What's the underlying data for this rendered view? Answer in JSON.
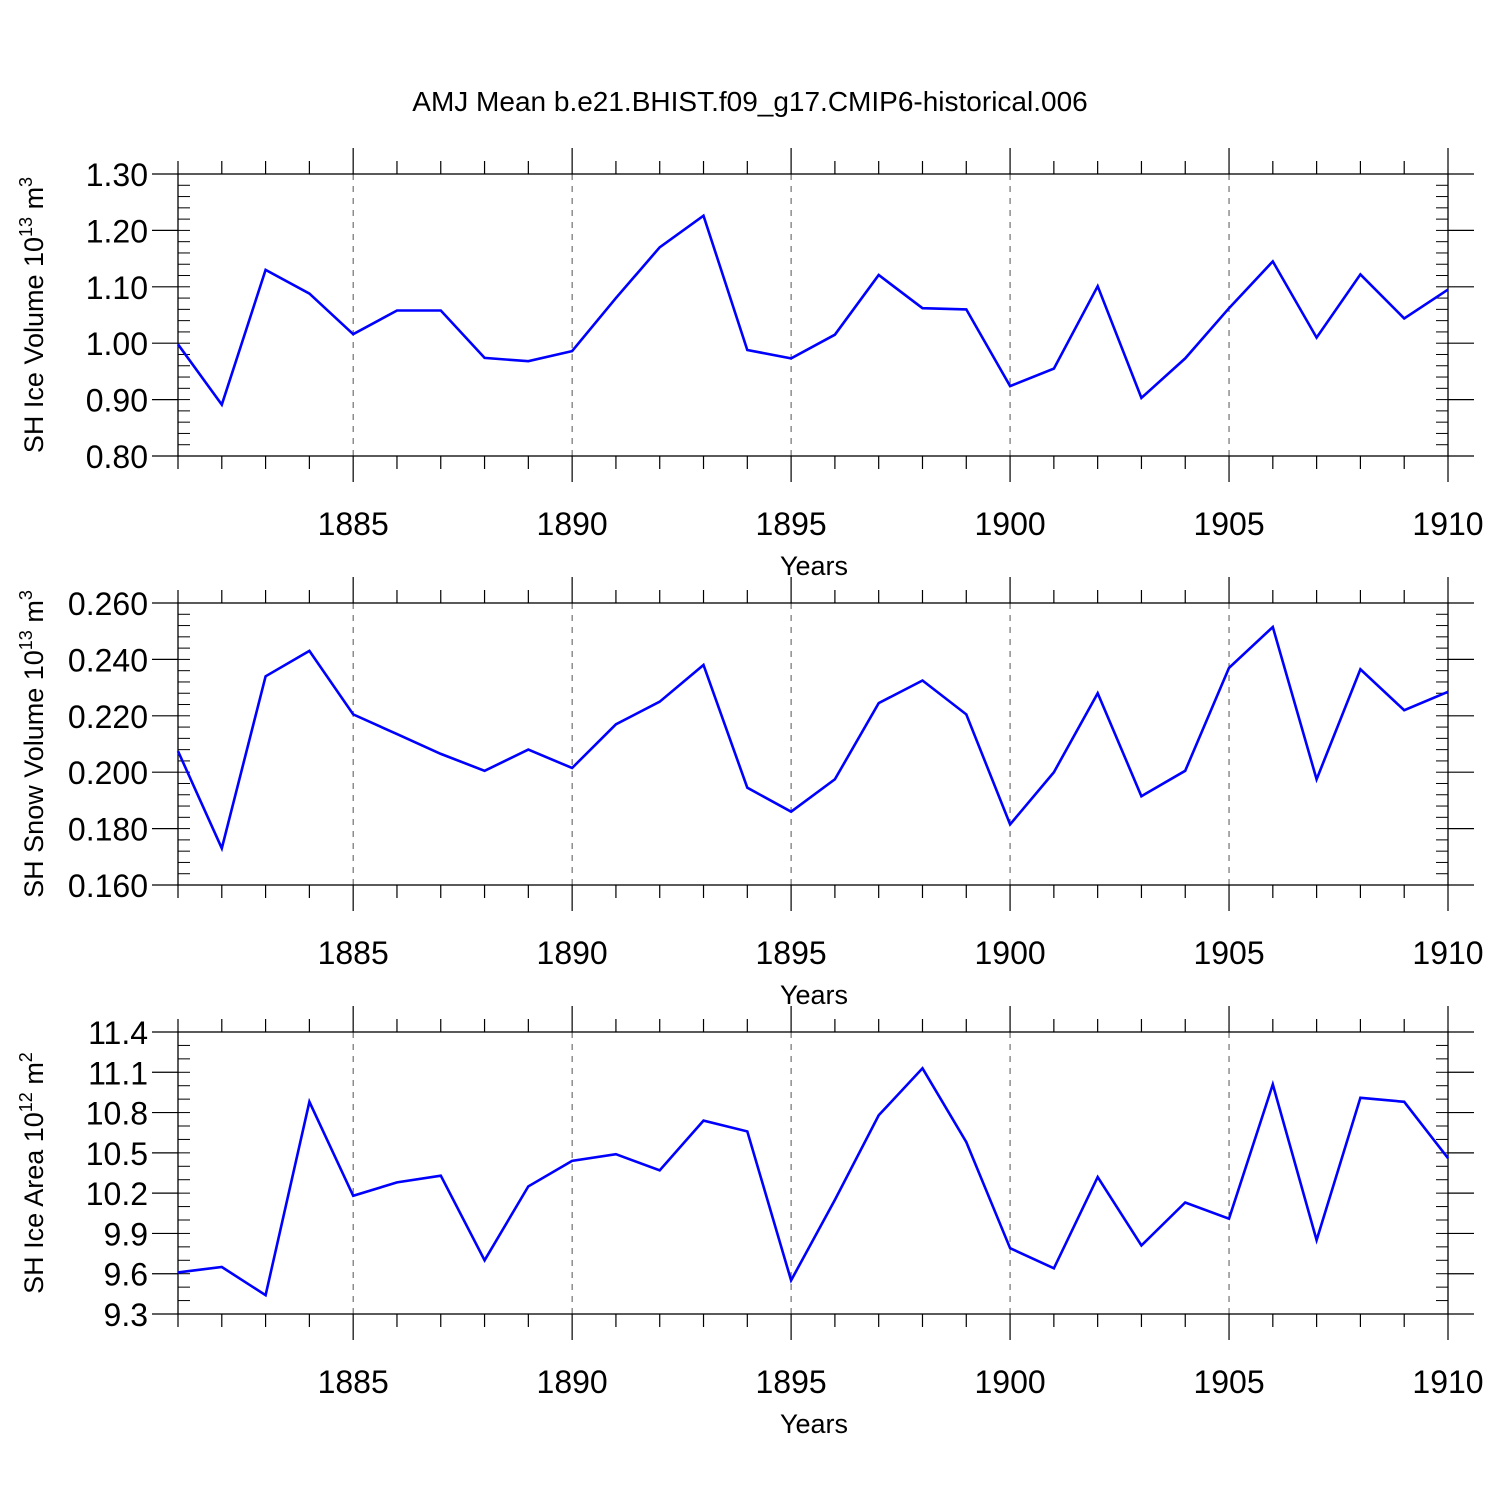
{
  "title": "AMJ Mean b.e21.BHIST.f09_g17.CMIP6-historical.006",
  "line_color": "#0000ff",
  "chart_data": [
    {
      "type": "line",
      "ylabel": "SH Ice Volume 10",
      "ylabel_sup": "13",
      "ylabel_unit": " m",
      "ylabel_unit_sup": "3",
      "xlabel": "Years",
      "xlim": [
        1881,
        1910
      ],
      "ylim": [
        0.8,
        1.3
      ],
      "x_ticks": [
        1885,
        1890,
        1895,
        1900,
        1905,
        1910
      ],
      "x_tick_labels": [
        "1885",
        "1890",
        "1895",
        "1900",
        "1905",
        "1910"
      ],
      "y_ticks": [
        0.8,
        0.9,
        1.0,
        1.1,
        1.2,
        1.3
      ],
      "y_tick_labels": [
        "0.80",
        "0.90",
        "1.00",
        "1.10",
        "1.20",
        "1.30"
      ],
      "y_minor_step": 0.02,
      "grid": "vertical dashed at major x ticks",
      "x": [
        1881,
        1882,
        1883,
        1884,
        1885,
        1886,
        1887,
        1888,
        1889,
        1890,
        1891,
        1892,
        1893,
        1894,
        1895,
        1896,
        1897,
        1898,
        1899,
        1900,
        1901,
        1902,
        1903,
        1904,
        1905,
        1906,
        1907,
        1908,
        1909,
        1910
      ],
      "y": [
        0.998,
        0.891,
        1.13,
        1.088,
        1.016,
        1.058,
        1.058,
        0.974,
        0.968,
        0.986,
        1.08,
        1.17,
        1.226,
        0.988,
        0.973,
        1.015,
        1.121,
        1.062,
        1.06,
        0.924,
        0.955,
        1.101,
        0.903,
        0.973,
        1.062,
        1.145,
        1.01,
        1.122,
        1.044,
        1.095
      ]
    },
    {
      "type": "line",
      "ylabel": "SH Snow Volume 10",
      "ylabel_sup": "13",
      "ylabel_unit": " m",
      "ylabel_unit_sup": "3",
      "xlabel": "Years",
      "xlim": [
        1881,
        1910
      ],
      "ylim": [
        0.16,
        0.26
      ],
      "x_ticks": [
        1885,
        1890,
        1895,
        1900,
        1905,
        1910
      ],
      "x_tick_labels": [
        "1885",
        "1890",
        "1895",
        "1900",
        "1905",
        "1910"
      ],
      "y_ticks": [
        0.16,
        0.18,
        0.2,
        0.22,
        0.24,
        0.26
      ],
      "y_tick_labels": [
        "0.160",
        "0.180",
        "0.200",
        "0.220",
        "0.240",
        "0.260"
      ],
      "y_minor_step": 0.004,
      "grid": "vertical dashed at major x ticks",
      "x": [
        1881,
        1882,
        1883,
        1884,
        1885,
        1886,
        1887,
        1888,
        1889,
        1890,
        1891,
        1892,
        1893,
        1894,
        1895,
        1896,
        1897,
        1898,
        1899,
        1900,
        1901,
        1902,
        1903,
        1904,
        1905,
        1906,
        1907,
        1908,
        1909,
        1910
      ],
      "y": [
        0.2075,
        0.173,
        0.234,
        0.243,
        0.2205,
        0.2135,
        0.2065,
        0.2005,
        0.208,
        0.2015,
        0.217,
        0.225,
        0.238,
        0.1945,
        0.186,
        0.1975,
        0.2245,
        0.2325,
        0.2205,
        0.1815,
        0.2,
        0.228,
        0.1915,
        0.2005,
        0.237,
        0.2515,
        0.1975,
        0.2365,
        0.222,
        0.2285
      ]
    },
    {
      "type": "line",
      "ylabel": "SH Ice Area 10",
      "ylabel_sup": "12",
      "ylabel_unit": " m",
      "ylabel_unit_sup": "2",
      "xlabel": "Years",
      "xlim": [
        1881,
        1910
      ],
      "ylim": [
        9.3,
        11.4
      ],
      "x_ticks": [
        1885,
        1890,
        1895,
        1900,
        1905,
        1910
      ],
      "x_tick_labels": [
        "1885",
        "1890",
        "1895",
        "1900",
        "1905",
        "1910"
      ],
      "y_ticks": [
        9.3,
        9.6,
        9.9,
        10.2,
        10.5,
        10.8,
        11.1,
        11.4
      ],
      "y_tick_labels": [
        "9.3",
        "9.6",
        "9.9",
        "10.2",
        "10.5",
        "10.8",
        "11.1",
        "11.4"
      ],
      "y_minor_step": 0.1,
      "grid": "vertical dashed at major x ticks",
      "x": [
        1881,
        1882,
        1883,
        1884,
        1885,
        1886,
        1887,
        1888,
        1889,
        1890,
        1891,
        1892,
        1893,
        1894,
        1895,
        1896,
        1897,
        1898,
        1899,
        1900,
        1901,
        1902,
        1903,
        1904,
        1905,
        1906,
        1907,
        1908,
        1909,
        1910
      ],
      "y": [
        9.61,
        9.65,
        9.44,
        10.88,
        10.18,
        10.28,
        10.33,
        9.7,
        10.25,
        10.44,
        10.49,
        10.37,
        10.74,
        10.66,
        9.55,
        10.15,
        10.78,
        11.13,
        10.58,
        9.79,
        9.64,
        10.32,
        9.81,
        10.13,
        10.01,
        11.01,
        9.85,
        10.91,
        10.88,
        10.46
      ]
    }
  ]
}
